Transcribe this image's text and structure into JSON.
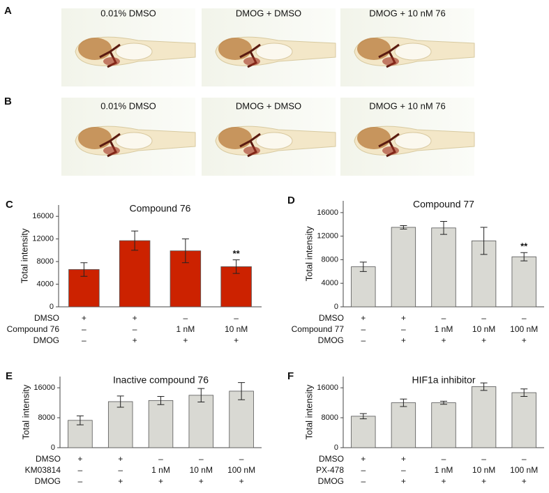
{
  "image_panels": [
    {
      "panel": "A",
      "captions": [
        "0.01% DMSO",
        "DMOG + DMSO",
        "DMOG + 10 nM 76"
      ]
    },
    {
      "panel": "B",
      "captions": [
        "0.01% DMSO",
        "DMOG + DMSO",
        "DMOG + 10 nM 76"
      ]
    }
  ],
  "chart_data": [
    {
      "type": "bar",
      "panel": "C",
      "title": "Compound 76",
      "y_label": "Total intensity",
      "color": "#cc2200",
      "values": [
        6600,
        11700,
        9900,
        7100
      ],
      "errors": [
        1200,
        1700,
        2100,
        1200
      ],
      "annotations": [
        null,
        null,
        null,
        "**"
      ],
      "ylim": [
        0,
        18000
      ],
      "yticks": [
        0,
        4000,
        8000,
        12000,
        16000
      ],
      "conditions": [
        {
          "label": "DMSO",
          "cells": [
            "+",
            "+",
            "–",
            "–"
          ]
        },
        {
          "label": "Compound 76",
          "cells": [
            "–",
            "–",
            "1 nM",
            "10 nM"
          ]
        },
        {
          "label": "DMOG",
          "cells": [
            "–",
            "+",
            "+",
            "+"
          ]
        }
      ]
    },
    {
      "type": "bar",
      "panel": "D",
      "title": "Compound 77",
      "y_label": "Total intensity",
      "color": "#d9d9d3",
      "values": [
        6800,
        13500,
        13400,
        11200,
        8500
      ],
      "errors": [
        800,
        300,
        1100,
        2300,
        700
      ],
      "annotations": [
        null,
        null,
        null,
        null,
        "**"
      ],
      "ylim": [
        0,
        18000
      ],
      "yticks": [
        0,
        4000,
        8000,
        12000,
        16000
      ],
      "conditions": [
        {
          "label": "DMSO",
          "cells": [
            "+",
            "+",
            "–",
            "–",
            "–"
          ]
        },
        {
          "label": "Compound 77",
          "cells": [
            "–",
            "–",
            "1 nM",
            "10 nM",
            "100 nM"
          ]
        },
        {
          "label": "DMOG",
          "cells": [
            "–",
            "+",
            "+",
            "+",
            "+"
          ]
        }
      ]
    },
    {
      "type": "bar",
      "panel": "E",
      "title": "Inactive compound 76",
      "y_label": "Total intensity",
      "color": "#d9d9d3",
      "values": [
        7300,
        12300,
        12600,
        14000,
        15100
      ],
      "errors": [
        1200,
        1500,
        1100,
        1800,
        2300
      ],
      "ylim": [
        0,
        19000
      ],
      "yticks": [
        0,
        8000,
        16000
      ],
      "conditions": [
        {
          "label": "DMSO",
          "cells": [
            "+",
            "+",
            "–",
            "–",
            "–"
          ]
        },
        {
          "label": "KM03814",
          "cells": [
            "–",
            "–",
            "1 nM",
            "10 nM",
            "100 nM"
          ]
        },
        {
          "label": "DMOG",
          "cells": [
            "–",
            "+",
            "+",
            "+",
            "+"
          ]
        }
      ]
    },
    {
      "type": "bar",
      "panel": "F",
      "title": "HIF1a inhibitor",
      "y_label": "Total intensity",
      "color": "#d9d9d3",
      "values": [
        8400,
        12000,
        12000,
        16300,
        14700
      ],
      "errors": [
        700,
        1000,
        400,
        1000,
        1000
      ],
      "ylim": [
        0,
        19000
      ],
      "yticks": [
        0,
        8000,
        16000
      ],
      "conditions": [
        {
          "label": "DMSO",
          "cells": [
            "+",
            "+",
            "–",
            "–",
            "–"
          ]
        },
        {
          "label": "PX-478",
          "cells": [
            "–",
            "–",
            "1 nM",
            "10 nM",
            "100 nM"
          ]
        },
        {
          "label": "DMOG",
          "cells": [
            "–",
            "+",
            "+",
            "+",
            "+"
          ]
        }
      ]
    }
  ]
}
